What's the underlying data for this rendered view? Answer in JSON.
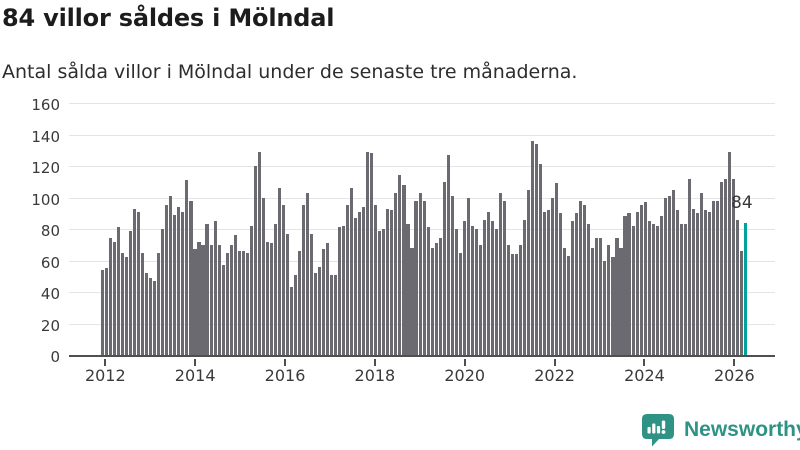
{
  "header": {
    "title": "84 villor såldes i Mölndal",
    "subtitle": "Antal sålda villor i Mölndal under de senaste tre månaderna."
  },
  "chart_data": {
    "type": "bar",
    "title": "84 villor såldes i Mölndal",
    "xlabel": "",
    "ylabel": "",
    "ylim": [
      0,
      160
    ],
    "grid": "horizontal",
    "legend": "none",
    "y_ticks": [
      0,
      20,
      40,
      60,
      80,
      100,
      120,
      140,
      160
    ],
    "x_ticks": [
      "2012",
      "2014",
      "2016",
      "2018",
      "2020",
      "2022",
      "2024",
      "2026"
    ],
    "highlight_label": "84",
    "highlight_value": 84,
    "values": [
      54,
      55,
      74,
      72,
      81,
      65,
      62,
      79,
      93,
      91,
      65,
      52,
      49,
      47,
      65,
      80,
      95,
      101,
      89,
      94,
      91,
      111,
      98,
      67,
      72,
      70,
      83,
      70,
      85,
      70,
      57,
      65,
      70,
      76,
      66,
      66,
      65,
      82,
      120,
      129,
      100,
      72,
      71,
      83,
      106,
      95,
      77,
      43,
      51,
      66,
      95,
      103,
      77,
      52,
      56,
      67,
      71,
      51,
      51,
      81,
      82,
      95,
      106,
      87,
      91,
      94,
      129,
      128,
      95,
      79,
      80,
      93,
      92,
      103,
      114,
      108,
      83,
      68,
      98,
      103,
      98,
      81,
      68,
      71,
      74,
      110,
      127,
      101,
      80,
      65,
      85,
      100,
      82,
      80,
      70,
      86,
      91,
      85,
      80,
      103,
      98,
      70,
      64,
      64,
      70,
      86,
      105,
      136,
      134,
      121,
      91,
      92,
      100,
      109,
      90,
      68,
      63,
      85,
      90,
      98,
      95,
      83,
      68,
      74,
      74,
      60,
      70,
      62,
      74,
      68,
      88,
      90,
      82,
      91,
      95,
      97,
      85,
      83,
      82,
      88,
      100,
      101,
      105,
      92,
      83,
      83,
      112,
      93,
      90,
      103,
      92,
      91,
      98,
      98,
      110,
      112,
      129,
      112,
      86,
      66,
      84
    ],
    "colors": {
      "bar": "#6b6a71",
      "highlight": "#00a29b",
      "gridline": "#e4e4e4",
      "axis": "#4f4f4f"
    }
  },
  "footer": {
    "brand": "Newsworthy",
    "logo_icon": "newsworthy-chart-bubble-icon",
    "brand_color": "#2e9385"
  }
}
